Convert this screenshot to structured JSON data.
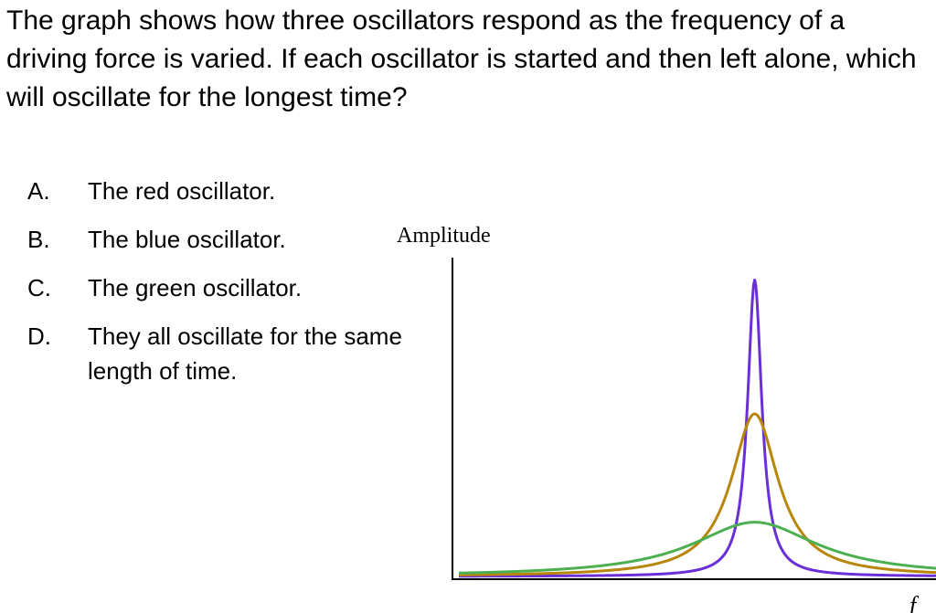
{
  "question": {
    "text": "The graph shows how three oscillators respond as the frequency of a driving force is varied. If each oscillator is started and then left alone, which will oscillate for the longest time?"
  },
  "choices": [
    {
      "letter": "A.",
      "text": "The red oscillator."
    },
    {
      "letter": "B.",
      "text": "The blue oscillator."
    },
    {
      "letter": "C.",
      "text": "The green oscillator."
    },
    {
      "letter": "D.",
      "text": "They all oscillate for the same length of time."
    }
  ],
  "chart_data": {
    "type": "line",
    "title": "",
    "ylabel": "Amplitude",
    "xlabel": "f",
    "x_range": [
      0,
      1
    ],
    "y_range": [
      0,
      1
    ],
    "resonance_x": 0.62,
    "grid": false,
    "legend": "none",
    "series": [
      {
        "color": "#6a2fd6",
        "peak": 0.93,
        "baseline": 0.0,
        "width": 0.018
      },
      {
        "color": "#b8860b",
        "peak": 0.51,
        "baseline": 0.0,
        "width": 0.06
      },
      {
        "color": "#4caf50",
        "peak": 0.17,
        "baseline": 0.0,
        "width": 0.16
      }
    ]
  }
}
